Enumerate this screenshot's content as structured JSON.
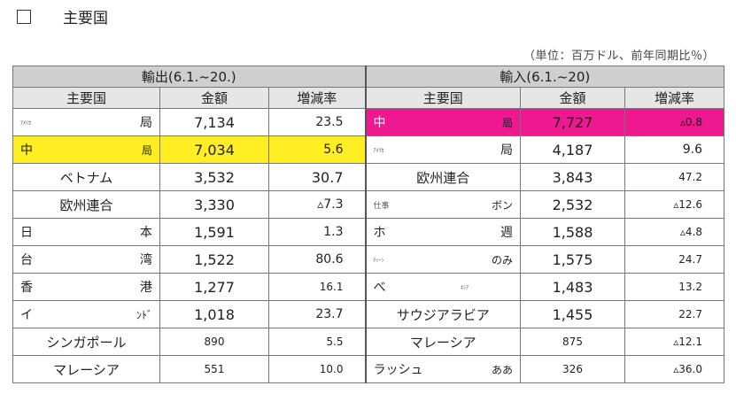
{
  "header": {
    "title": "主要国",
    "unit_note": "（単位：百万ドル、前年同期比％）"
  },
  "exports": {
    "title": "輸出(6.1.~20.)",
    "columns": [
      "主要国",
      "金額",
      "増減率"
    ],
    "rows": [
      {
        "left": "ｱﾒﾘｶ",
        "right": "局",
        "amount": "7,134",
        "rate": "23.5"
      },
      {
        "left": "中",
        "right": "局",
        "amount": "7,034",
        "rate": "5.6"
      },
      {
        "name": "ベトナム",
        "amount": "3,532",
        "rate": "30.7"
      },
      {
        "name": "欧州連合",
        "amount": "3,330",
        "rate": "▵7.3"
      },
      {
        "left": "日",
        "right": "本",
        "amount": "1,591",
        "rate": "1.3"
      },
      {
        "left": "台",
        "right": "湾",
        "amount": "1,522",
        "rate": "80.6"
      },
      {
        "left": "香",
        "right": "港",
        "amount": "1,277",
        "rate": "16.1"
      },
      {
        "left": "イ",
        "right": "ﾝﾄﾞ",
        "amount": "1,018",
        "rate": "23.7"
      },
      {
        "name": "シンガポール",
        "amount": "890",
        "rate": "5.5"
      },
      {
        "name": "マレーシア",
        "amount": "551",
        "rate": "10.0"
      }
    ]
  },
  "imports": {
    "title": "輸入(6.1.~20)",
    "columns": [
      "主要国",
      "金額",
      "増減率"
    ],
    "rows": [
      {
        "left": "中",
        "right": "局",
        "amount": "7,727",
        "rate": "▵0.8"
      },
      {
        "left": "ｱﾒﾘｶ",
        "right": "局",
        "amount": "4,187",
        "rate": "9.6"
      },
      {
        "name": "欧州連合",
        "amount": "3,843",
        "rate": "47.2"
      },
      {
        "left": "仕事",
        "right": "ボン",
        "amount": "2,532",
        "rate": "▵12.6"
      },
      {
        "left": "ホ",
        "right": "週",
        "amount": "1,588",
        "rate": "▵4.8"
      },
      {
        "left": "ﾃｨｰﾝ",
        "right": "のみ",
        "amount": "1,575",
        "rate": "24.7"
      },
      {
        "left": "べ",
        "right": "ﾈｼｱ",
        "amount": "1,483",
        "rate": "13.2"
      },
      {
        "name": "サウジアラビア",
        "amount": "1,455",
        "rate": "22.7"
      },
      {
        "name": "マレーシア",
        "amount": "875",
        "rate": "▵12.1"
      },
      {
        "left": "ラッシュ",
        "right": "ああ",
        "amount": "326",
        "rate": "▵36.0"
      }
    ]
  },
  "colors": {
    "highlight_yellow": "#ffee22",
    "highlight_magenta": "#ee1890"
  }
}
